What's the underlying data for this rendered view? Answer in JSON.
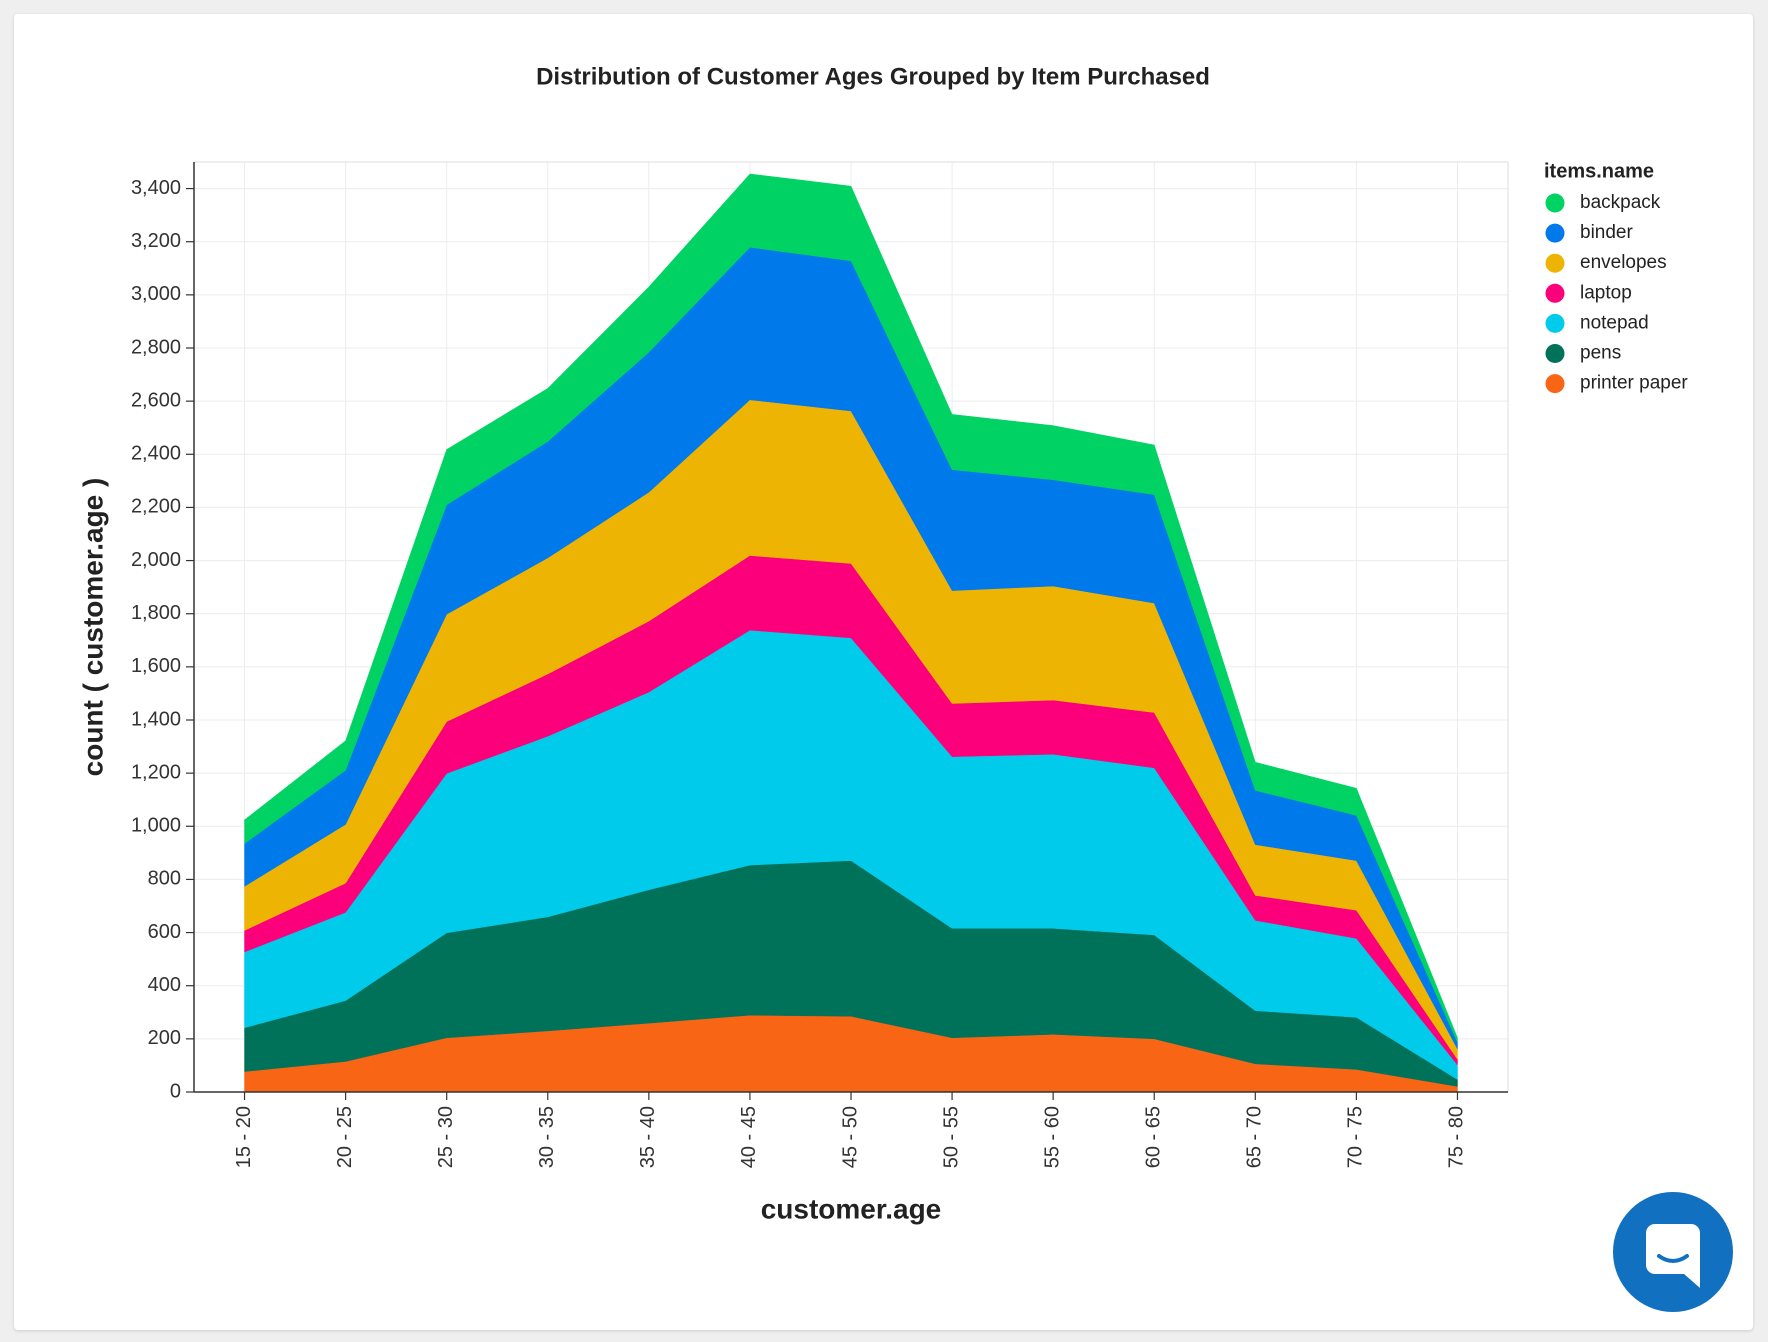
{
  "chart_data": {
    "type": "stacked_area",
    "title": "Distribution of Customer Ages Grouped by Item Purchased",
    "x_label": "customer.age",
    "y_label": "count ( customer.age )",
    "legend_title": "items.name",
    "legend_position": "right",
    "grid": true,
    "categories": [
      "15 - 20",
      "20 - 25",
      "25 - 30",
      "30 - 35",
      "35 - 40",
      "40 - 45",
      "45 - 50",
      "50 - 55",
      "55 - 60",
      "60 - 65",
      "65 - 70",
      "70 - 75",
      "75 - 80"
    ],
    "ylim": [
      0,
      3500
    ],
    "yticks": [
      0,
      200,
      400,
      600,
      800,
      {
        "value": 1000,
        "label": "1,000"
      },
      {
        "value": 1200,
        "label": "1,200"
      },
      {
        "value": 1400,
        "label": "1,400"
      },
      {
        "value": 1600,
        "label": "1,600"
      },
      {
        "value": 1800,
        "label": "1,800"
      },
      {
        "value": 2000,
        "label": "2,000"
      },
      {
        "value": 2200,
        "label": "2,200"
      },
      {
        "value": 2400,
        "label": "2,400"
      },
      {
        "value": 2600,
        "label": "2,600"
      },
      {
        "value": 2800,
        "label": "2,800"
      },
      {
        "value": 3000,
        "label": "3,000"
      },
      {
        "value": 3200,
        "label": "3,200"
      },
      {
        "value": 3400,
        "label": "3,400"
      }
    ],
    "series": [
      {
        "name": "backpack",
        "color": "#00d364",
        "values": [
          89,
          111,
          208,
          200,
          246,
          276,
          281,
          208,
          204,
          187,
          106,
          102,
          17
        ]
      },
      {
        "name": "binder",
        "color": "#0079ea",
        "values": [
          161,
          204,
          412,
          438,
          527,
          574,
          565,
          455,
          400,
          408,
          204,
          170,
          25
        ]
      },
      {
        "name": "envelopes",
        "color": "#eeb404",
        "values": [
          166,
          221,
          404,
          437,
          485,
          586,
          574,
          425,
          429,
          412,
          191,
          187,
          39
        ]
      },
      {
        "name": "laptop",
        "color": "#fc007c",
        "values": [
          81,
          110,
          195,
          234,
          267,
          281,
          280,
          200,
          204,
          208,
          94,
          106,
          21
        ]
      },
      {
        "name": "notepad",
        "color": "#00cbeb",
        "values": [
          285,
          332,
          600,
          680,
          744,
          884,
          838,
          646,
          655,
          629,
          340,
          297,
          55
        ]
      },
      {
        "name": "pens",
        "color": "#00725a",
        "values": [
          165,
          229,
          395,
          429,
          502,
          565,
          586,
          412,
          399,
          391,
          200,
          196,
          26
        ]
      },
      {
        "name": "printer paper",
        "color": "#f86515",
        "values": [
          77,
          115,
          204,
          230,
          259,
          289,
          285,
          204,
          217,
          200,
          106,
          85,
          21
        ]
      }
    ]
  }
}
